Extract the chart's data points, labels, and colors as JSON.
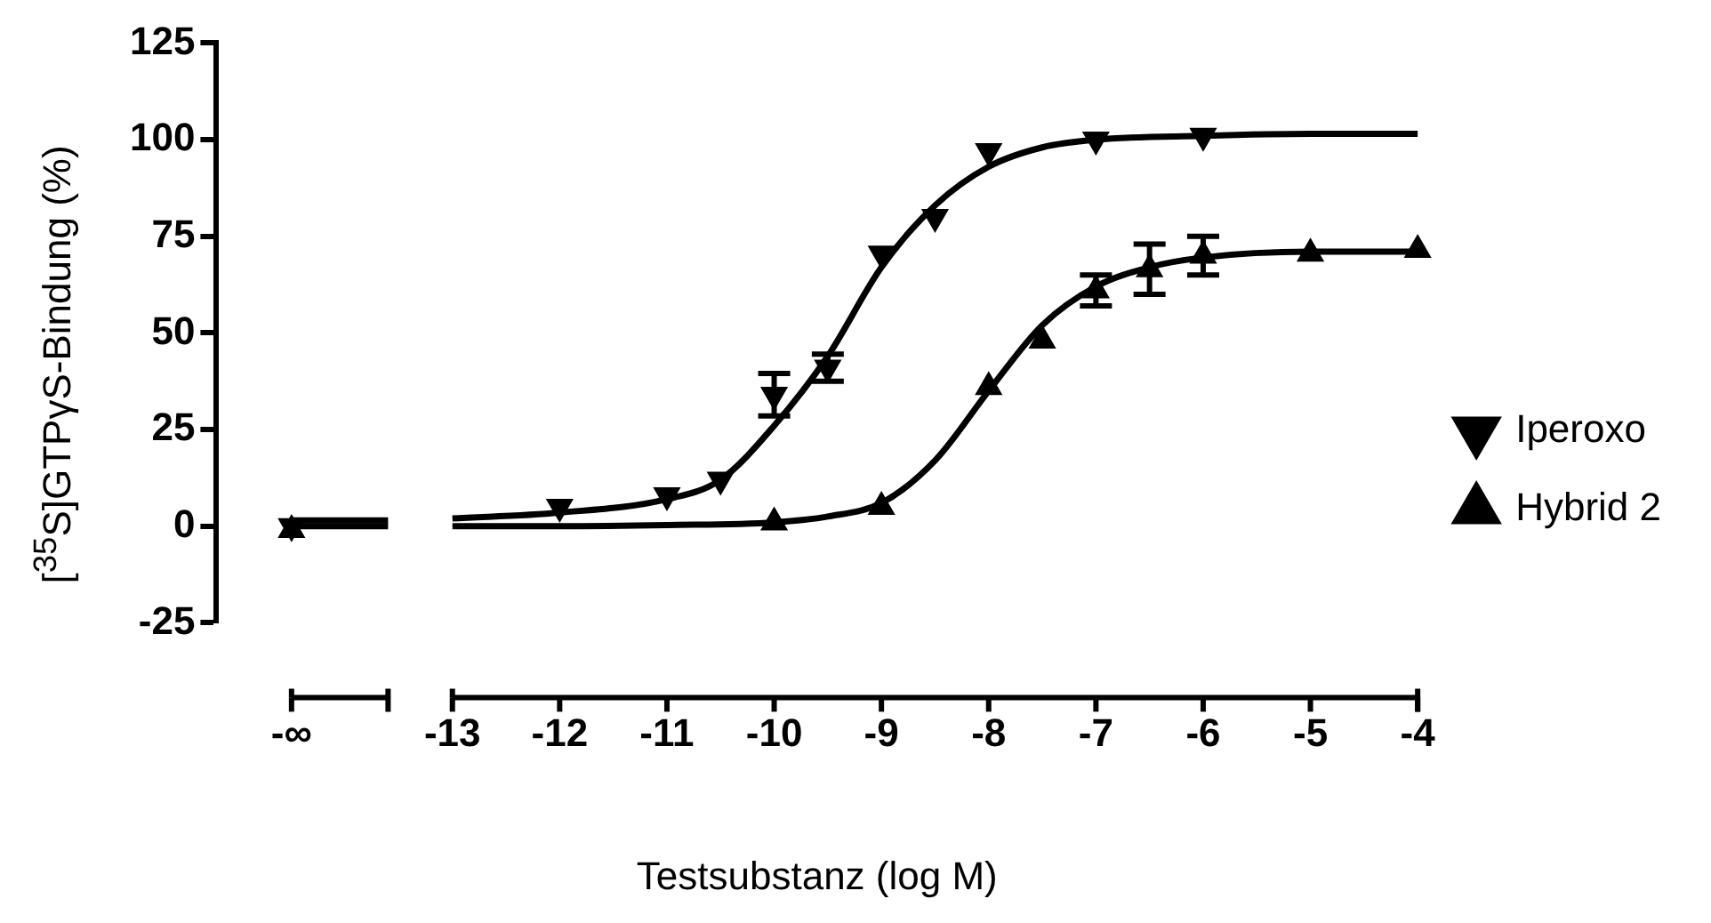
{
  "chart_data": {
    "type": "scatter",
    "xlabel": "Testsubstanz (log M)",
    "ylabel": "[$^{35}$S]GTPγS-Bindung (%)",
    "xlim": [
      -15.2,
      -4
    ],
    "xticks": [
      {
        "value": -14.5,
        "label": "-∞"
      },
      -13,
      -12,
      -11,
      -10,
      -9,
      -8,
      -7,
      -6,
      -5,
      -4
    ],
    "ylim": [
      -25,
      125
    ],
    "yticks": [
      -25,
      0,
      25,
      50,
      75,
      100,
      125
    ],
    "grid": false,
    "legend": "right",
    "series": [
      {
        "name": "Iperoxo",
        "color": "#000000",
        "marker": "triangle-down",
        "x": [
          -14.5,
          -12,
          -11,
          -10.5,
          -10,
          -9.5,
          -9,
          -8.5,
          -8,
          -7,
          -6
        ],
        "values": [
          0,
          5,
          8,
          12,
          34,
          41,
          70.5,
          80,
          97,
          100,
          101
        ],
        "errors": [
          null,
          null,
          null,
          null,
          5.5,
          3.5,
          null,
          null,
          null,
          null,
          null
        ]
      },
      {
        "name": "Hybrid 2",
        "color": "#000000",
        "marker": "triangle",
        "x": [
          -14.5,
          -10,
          -9,
          -8,
          -7.5,
          -7,
          -6.5,
          -6,
          -5,
          -4
        ],
        "values": [
          -1,
          1,
          5,
          36,
          48,
          61,
          66.5,
          70,
          70.5,
          71.5
        ],
        "errors": [
          null,
          null,
          null,
          null,
          null,
          4,
          6.5,
          5,
          null,
          null
        ]
      },
      {
        "type": "line",
        "color": "#000000",
        "marker": "none",
        "line_style": "solid",
        "x": [
          -14.5,
          -13.6,
          -13.3,
          -13,
          -12,
          -11,
          -10.5,
          -10,
          -9.5,
          -9,
          -8.5,
          -8,
          -7.5,
          -7,
          -6,
          -5,
          -4
        ],
        "values": [
          1.5,
          1.5,
          null,
          2,
          3.5,
          7,
          12,
          26,
          44,
          67,
          83,
          93,
          98,
          100,
          101,
          101.5,
          101.5
        ]
      },
      {
        "type": "line",
        "color": "#000000",
        "marker": "none",
        "line_style": "solid",
        "x": [
          -14.5,
          -13.6,
          -13.3,
          -13,
          -12,
          -11,
          -10,
          -9.5,
          -9,
          -8.5,
          -8,
          -7.5,
          -7,
          -6.5,
          -6,
          -5,
          -4
        ],
        "values": [
          0,
          0,
          null,
          0,
          0,
          0.3,
          1,
          2.5,
          6,
          17,
          35,
          52,
          62,
          67,
          69.5,
          71,
          71
        ]
      }
    ]
  }
}
